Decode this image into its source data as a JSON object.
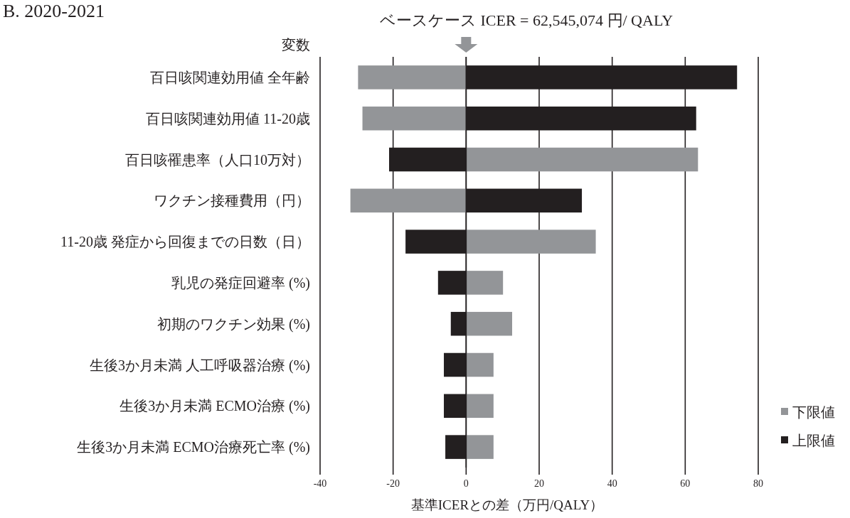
{
  "chart_data": {
    "type": "bar",
    "orientation": "horizontal",
    "stacked": true,
    "title": "B. 2020-2021",
    "ylabel": "変数",
    "xlabel": "基準ICERとの差（万円/QALY）",
    "annotations": [
      "ベースケース ICER = 62,545,074 円/ QALY"
    ],
    "categories": [
      "百日咳関連効用値 全年齢",
      "百日咳関連効用値 11-20歳",
      "百日咳罹患率（人口10万対）",
      "ワクチン接種費用（円）",
      "11-20歳 発症から回復までの日数（日）",
      "乳児の発症回避率 (%)",
      "初期のワクチン効果 (%)",
      "生後3か月未満 人工呼吸器治療 (%)",
      "生後3か月未満 ECMO治療 (%)",
      "生後3か月未満 ECMO治療死亡率 (%)"
    ],
    "series": [
      {
        "name": "下限値",
        "color": "#939598",
        "values": [
          -29.6,
          -28.4,
          63.5,
          -31.7,
          35.5,
          10.1,
          12.6,
          7.5,
          7.5,
          7.5
        ]
      },
      {
        "name": "上限値",
        "color": "#231f20",
        "values": [
          74.2,
          63.0,
          -21.1,
          31.7,
          -16.6,
          -7.7,
          -4.2,
          -6.1,
          -6.1,
          -5.7
        ]
      }
    ],
    "xlim": [
      -40,
      80
    ],
    "xticks": [
      -40,
      -20,
      0,
      20,
      40,
      60,
      80
    ],
    "grid": "x",
    "legend": "right"
  }
}
